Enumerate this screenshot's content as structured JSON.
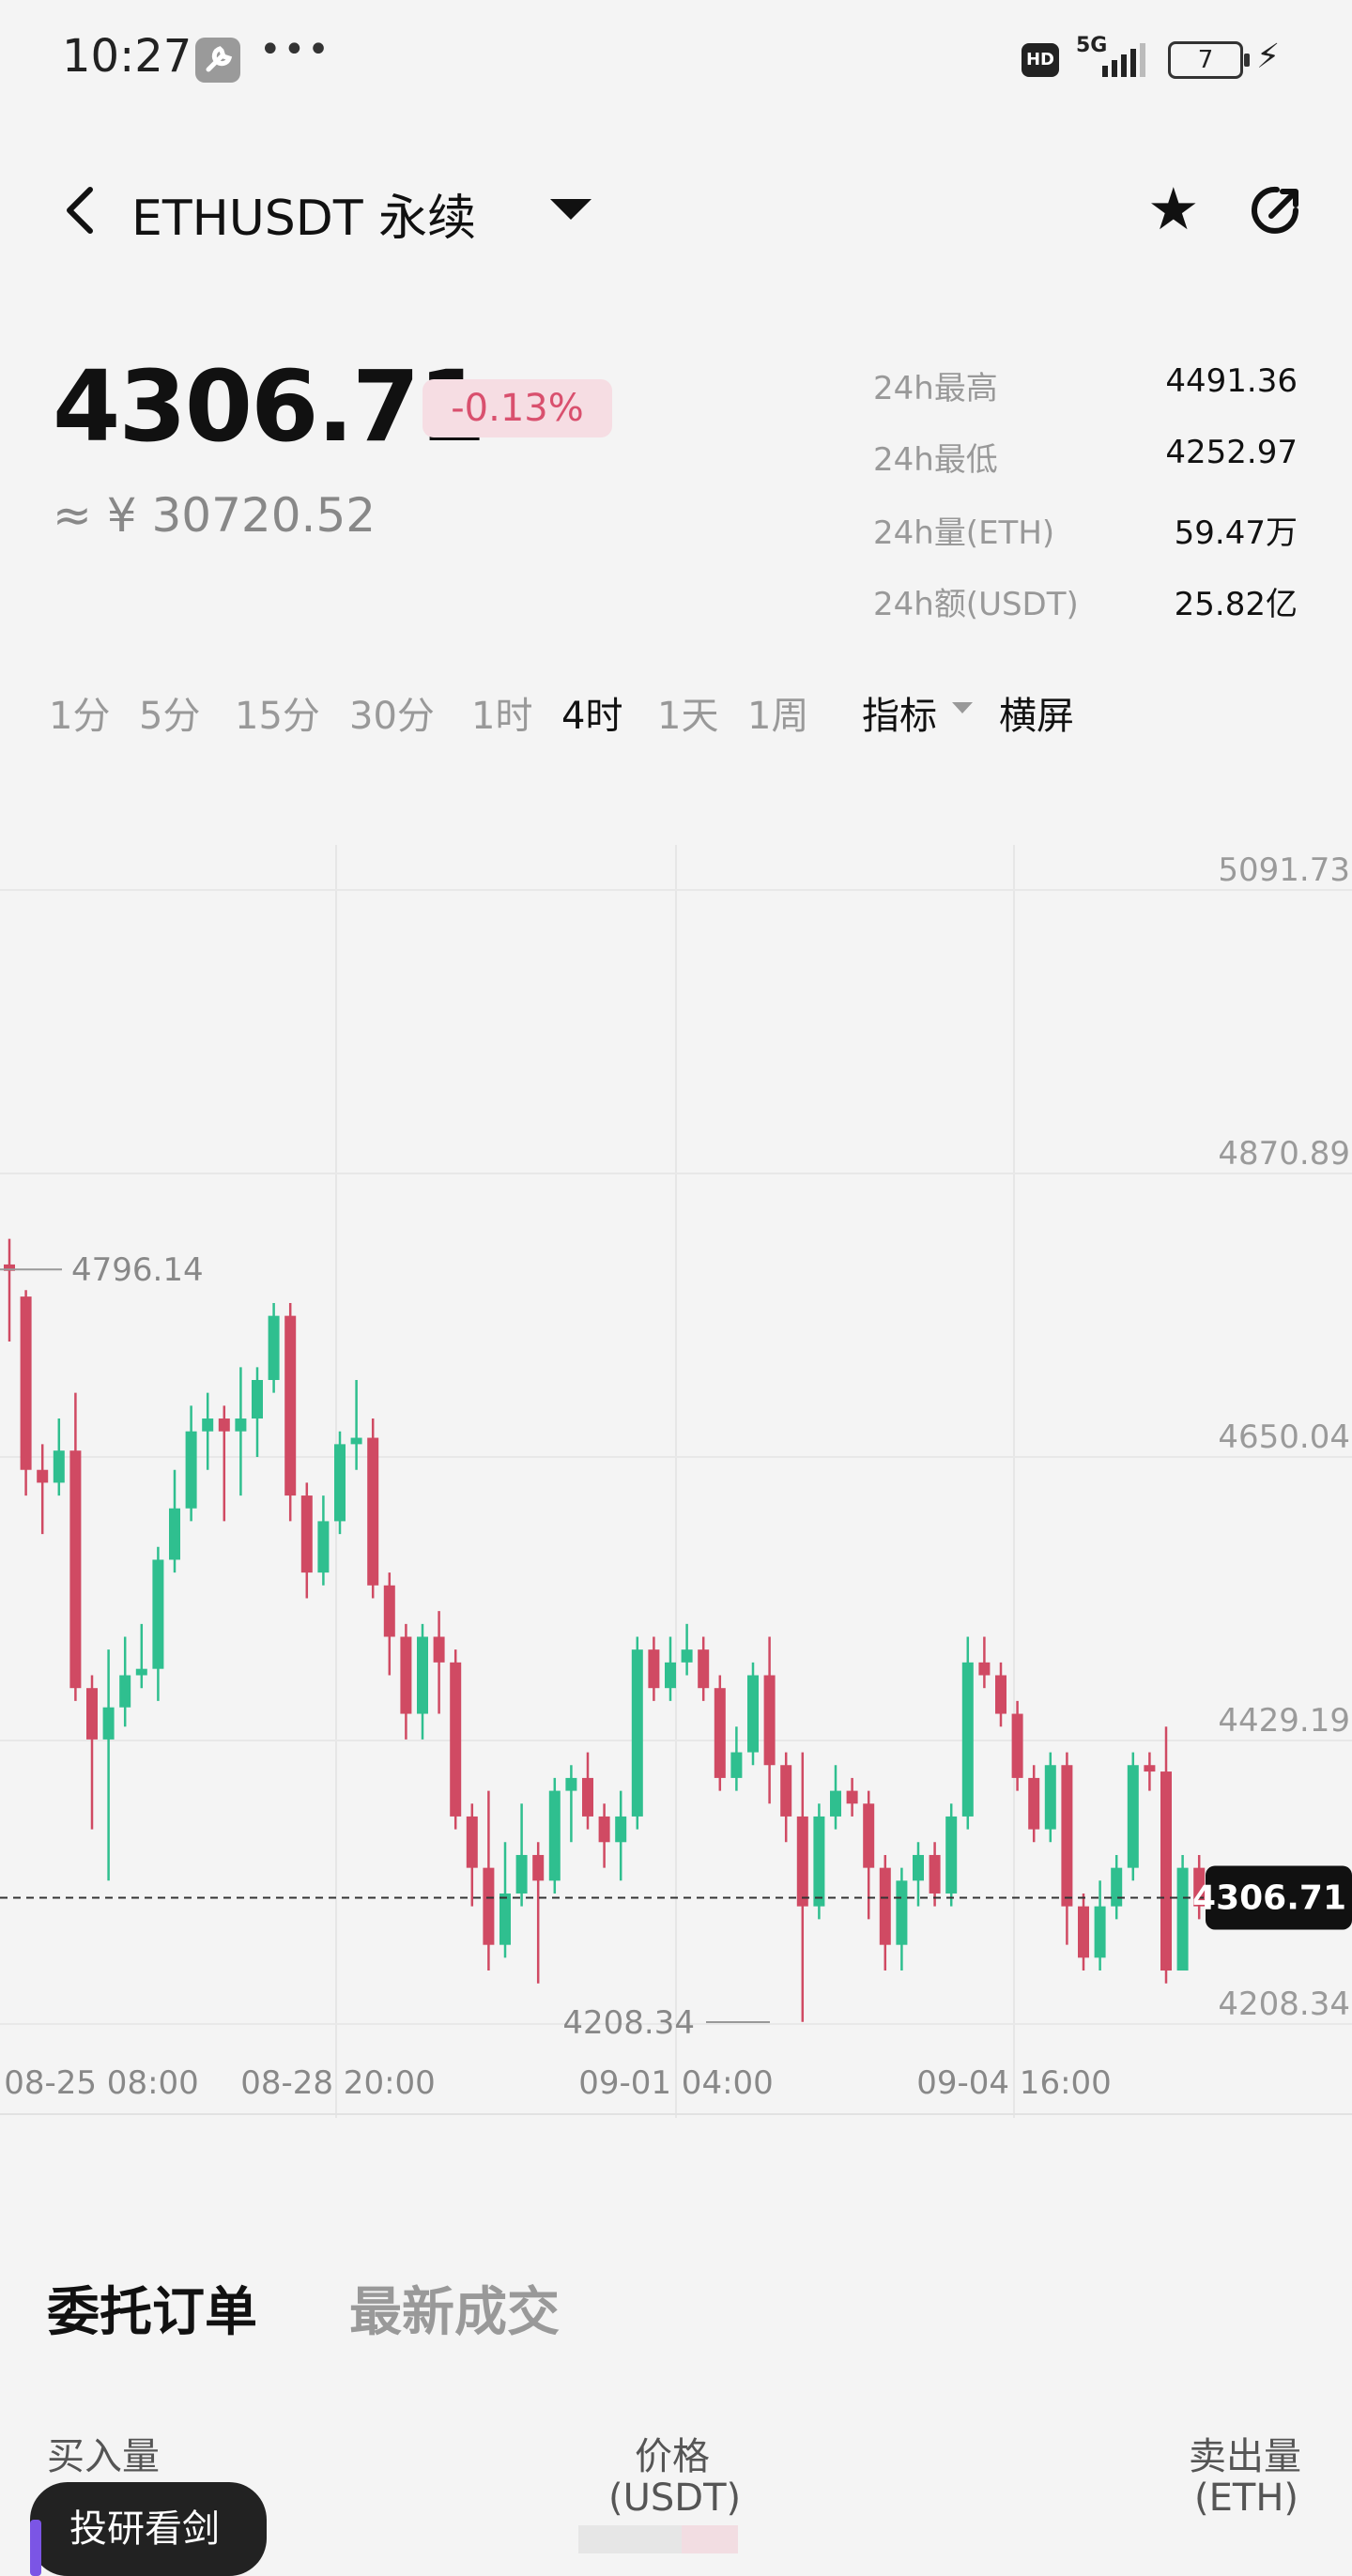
{
  "status_bar": {
    "time": "10:27",
    "dots": "•••",
    "hd": "HD",
    "network": "5G",
    "battery": "7"
  },
  "header": {
    "title": "ETHUSDT 永续"
  },
  "ticker": {
    "price": "4306.71",
    "change": "-0.13%",
    "cny": "≈ ¥ 30720.52",
    "stats": [
      {
        "label": "24h最高",
        "value": "4491.36"
      },
      {
        "label": "24h最低",
        "value": "4252.97"
      },
      {
        "label": "24h量(ETH)",
        "value": "59.47万"
      },
      {
        "label": "24h额(USDT)",
        "value": "25.82亿"
      }
    ]
  },
  "intervals": {
    "items": [
      "1分",
      "5分",
      "15分",
      "30分",
      "1时",
      "4时",
      "1天",
      "1周"
    ],
    "active": "4时",
    "indicator_label": "指标",
    "landscape_label": "横屏"
  },
  "chart_data": {
    "type": "candlestick",
    "y_tick_labels": [
      "5091.73",
      "4870.89",
      "4650.04",
      "4429.19",
      "4208.34"
    ],
    "x_tick_labels": [
      "08-25 08:00",
      "08-28 20:00",
      "09-01 04:00",
      "09-04 16:00"
    ],
    "ylim": [
      4208.34,
      5091.73
    ],
    "last_price": "4306.71",
    "max_annotation": "4796.14",
    "min_annotation": "4208.34",
    "up_color": "#2fbf8f",
    "down_color": "#d04a63",
    "candles": [
      [
        4800,
        4795,
        4820,
        4740
      ],
      [
        4775,
        4640,
        4780,
        4620
      ],
      [
        4640,
        4630,
        4660,
        4590
      ],
      [
        4630,
        4655,
        4680,
        4620
      ],
      [
        4655,
        4470,
        4700,
        4460
      ],
      [
        4470,
        4430,
        4480,
        4360
      ],
      [
        4430,
        4455,
        4500,
        4320
      ],
      [
        4455,
        4480,
        4510,
        4440
      ],
      [
        4480,
        4485,
        4520,
        4470
      ],
      [
        4485,
        4570,
        4580,
        4460
      ],
      [
        4570,
        4610,
        4640,
        4560
      ],
      [
        4610,
        4670,
        4690,
        4600
      ],
      [
        4670,
        4680,
        4700,
        4640
      ],
      [
        4680,
        4670,
        4690,
        4600
      ],
      [
        4670,
        4680,
        4720,
        4620
      ],
      [
        4680,
        4710,
        4720,
        4650
      ],
      [
        4710,
        4760,
        4770,
        4700
      ],
      [
        4760,
        4620,
        4770,
        4600
      ],
      [
        4620,
        4560,
        4630,
        4540
      ],
      [
        4560,
        4600,
        4620,
        4550
      ],
      [
        4600,
        4660,
        4670,
        4590
      ],
      [
        4660,
        4665,
        4710,
        4640
      ],
      [
        4665,
        4550,
        4680,
        4540
      ],
      [
        4550,
        4510,
        4560,
        4480
      ],
      [
        4510,
        4450,
        4520,
        4430
      ],
      [
        4450,
        4510,
        4520,
        4430
      ],
      [
        4510,
        4490,
        4530,
        4450
      ],
      [
        4490,
        4370,
        4500,
        4360
      ],
      [
        4370,
        4330,
        4380,
        4300
      ],
      [
        4330,
        4270,
        4390,
        4250
      ],
      [
        4270,
        4310,
        4350,
        4260
      ],
      [
        4310,
        4340,
        4380,
        4300
      ],
      [
        4340,
        4320,
        4350,
        4240
      ],
      [
        4320,
        4390,
        4400,
        4310
      ],
      [
        4390,
        4400,
        4410,
        4350
      ],
      [
        4400,
        4370,
        4420,
        4360
      ],
      [
        4370,
        4350,
        4380,
        4330
      ],
      [
        4350,
        4370,
        4390,
        4320
      ],
      [
        4370,
        4500,
        4510,
        4360
      ],
      [
        4500,
        4470,
        4510,
        4460
      ],
      [
        4470,
        4490,
        4510,
        4460
      ],
      [
        4490,
        4500,
        4520,
        4480
      ],
      [
        4500,
        4470,
        4510,
        4460
      ],
      [
        4470,
        4400,
        4480,
        4390
      ],
      [
        4400,
        4420,
        4440,
        4390
      ],
      [
        4420,
        4480,
        4490,
        4410
      ],
      [
        4480,
        4410,
        4510,
        4380
      ],
      [
        4410,
        4370,
        4420,
        4350
      ],
      [
        4370,
        4300,
        4420,
        4210
      ],
      [
        4300,
        4370,
        4380,
        4290
      ],
      [
        4370,
        4390,
        4410,
        4360
      ],
      [
        4390,
        4380,
        4400,
        4370
      ],
      [
        4380,
        4330,
        4390,
        4290
      ],
      [
        4330,
        4270,
        4340,
        4250
      ],
      [
        4270,
        4320,
        4330,
        4250
      ],
      [
        4320,
        4340,
        4350,
        4300
      ],
      [
        4340,
        4310,
        4350,
        4300
      ],
      [
        4310,
        4370,
        4380,
        4300
      ],
      [
        4370,
        4490,
        4510,
        4360
      ],
      [
        4490,
        4480,
        4510,
        4470
      ],
      [
        4480,
        4450,
        4490,
        4440
      ],
      [
        4450,
        4400,
        4460,
        4390
      ],
      [
        4400,
        4360,
        4410,
        4350
      ],
      [
        4360,
        4410,
        4420,
        4350
      ],
      [
        4410,
        4300,
        4420,
        4270
      ],
      [
        4300,
        4260,
        4310,
        4250
      ],
      [
        4260,
        4300,
        4320,
        4250
      ],
      [
        4300,
        4330,
        4340,
        4290
      ],
      [
        4330,
        4410,
        4420,
        4320
      ],
      [
        4410,
        4405,
        4420,
        4390
      ],
      [
        4405,
        4250,
        4440,
        4240
      ],
      [
        4250,
        4330,
        4340,
        4250
      ],
      [
        4330,
        4300,
        4340,
        4290
      ],
      [
        4300,
        4305,
        4320,
        4295
      ]
    ]
  },
  "orders": {
    "tabs": [
      "委托订单",
      "最新成交"
    ],
    "col_buy": "买入量",
    "col_price_1": "价格",
    "col_price_2": "(USDT)",
    "col_sell_1": "卖出量",
    "col_sell_2": "(ETH)"
  },
  "floating": {
    "research_label": "投研看剑"
  }
}
